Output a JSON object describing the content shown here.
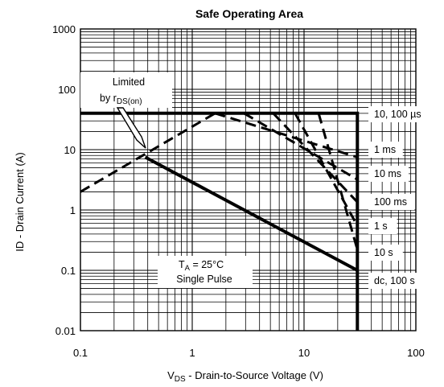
{
  "chart_data": {
    "type": "line",
    "title": "Safe Operating Area",
    "xlabel_main": "V",
    "xlabel_sub": "DS",
    "xlabel_rest": "  -  Drain-to-Source Voltage (V)",
    "ylabel": "ID - Drain Current (A)",
    "x_scale": "log",
    "y_scale": "log",
    "xlim": [
      0.1,
      100
    ],
    "ylim": [
      0.01,
      1000
    ],
    "x_ticks": [
      {
        "value": 0.1,
        "label": "0.1"
      },
      {
        "value": 1,
        "label": "1"
      },
      {
        "value": 10,
        "label": "10"
      },
      {
        "value": 100,
        "label": "100"
      }
    ],
    "y_ticks": [
      {
        "value": 1000,
        "label": "1000"
      },
      {
        "value": 100,
        "label": "100"
      },
      {
        "value": 10,
        "label": "10"
      },
      {
        "value": 1,
        "label": "1"
      },
      {
        "value": 0.1,
        "label": "0.1"
      },
      {
        "value": 0.01,
        "label": "0.01"
      }
    ],
    "grid": true,
    "series": [
      {
        "name": "10, 100 µs",
        "style": "solid",
        "points": [
          [
            0.1,
            40
          ],
          [
            30,
            40
          ],
          [
            30,
            0.01
          ]
        ]
      },
      {
        "name": "",
        "style": "dashed",
        "points": [
          [
            0.1,
            2.0
          ],
          [
            1.6,
            40
          ]
        ]
      },
      {
        "name": "1 ms",
        "style": "dashed",
        "points": [
          [
            1.6,
            40
          ],
          [
            30,
            7.5
          ]
        ]
      },
      {
        "name": "10 ms",
        "style": "dashed",
        "points": [
          [
            2.9,
            40
          ],
          [
            30,
            3.2
          ]
        ]
      },
      {
        "name": "100 ms",
        "style": "dashed",
        "points": [
          [
            5.3,
            40
          ],
          [
            30,
            1.35
          ]
        ]
      },
      {
        "name": "1 s",
        "style": "dashed",
        "points": [
          [
            8.3,
            40
          ],
          [
            30,
            0.55
          ]
        ]
      },
      {
        "name": "10 s",
        "style": "dashed",
        "points": [
          [
            13.5,
            40
          ],
          [
            30,
            0.22
          ]
        ]
      },
      {
        "name": "dc, 100 s",
        "style": "solid",
        "points": [
          [
            0.38,
            7.5
          ],
          [
            30,
            0.1
          ]
        ]
      }
    ],
    "series_labels": [
      "10, 100 µs",
      "1 ms",
      "10 ms",
      "100 ms",
      "1 s",
      "10 s",
      "dc, 100 s"
    ],
    "annotation_limited": {
      "line1": "Limited",
      "line2_main": "by r",
      "line2_sub": "DS(on)"
    },
    "annotation_conditions": {
      "line1_main": "T",
      "line1_sub": "A",
      "line1_rest": " = 25°C",
      "line2": "Single Pulse"
    }
  }
}
